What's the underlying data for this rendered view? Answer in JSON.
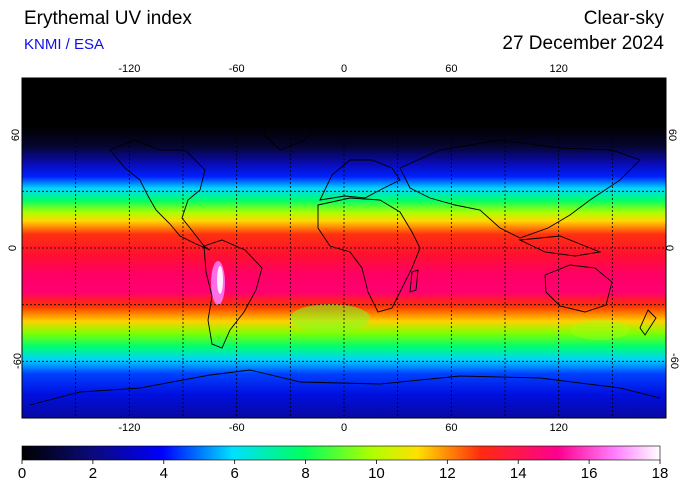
{
  "header": {
    "title": "Erythemal UV index",
    "credit": "KNMI / ESA",
    "mode": "Clear-sky",
    "date": "27 December 2024"
  },
  "map": {
    "projection": "equirectangular",
    "lon_range": [
      -180,
      180
    ],
    "lat_range": [
      -90,
      90
    ],
    "grid": "dashed, every 30 degrees",
    "lon_ticks": [
      "-120",
      "-60",
      "0",
      "60",
      "120"
    ],
    "lat_ticks": [
      "60",
      "0",
      "-60"
    ],
    "lat_ticks_right": [
      "60",
      "0",
      "-60"
    ]
  },
  "colorbar": {
    "min": 0,
    "max": 18,
    "labels": [
      "0",
      "2",
      "4",
      "6",
      "8",
      "10",
      "12",
      "14",
      "16",
      "18"
    ],
    "colors": [
      "#000000",
      "#0a0a7a",
      "#0000ff",
      "#00e0ff",
      "#00ff60",
      "#b0ff00",
      "#ffe000",
      "#ff2a10",
      "#ff0090",
      "#ff80ff",
      "#ffffff"
    ]
  }
}
